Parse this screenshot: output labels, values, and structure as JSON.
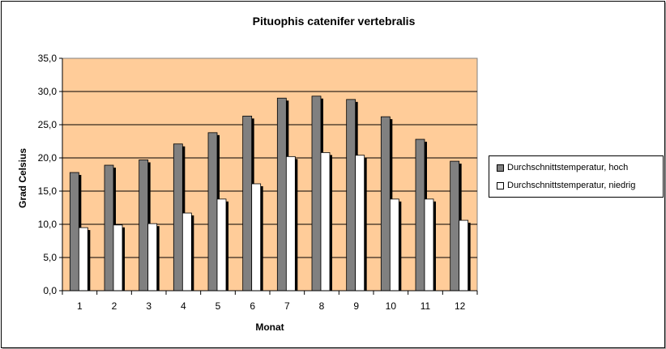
{
  "chart_data": {
    "type": "bar",
    "title": "Pituophis catenifer vertebralis",
    "xlabel": "Monat",
    "ylabel": "Grad Celsius",
    "categories": [
      "1",
      "2",
      "3",
      "4",
      "5",
      "6",
      "7",
      "8",
      "9",
      "10",
      "11",
      "12"
    ],
    "series": [
      {
        "name": "Durchschnittstemperatur, hoch",
        "color": "#808080",
        "values": [
          17.8,
          18.9,
          19.7,
          22.1,
          23.8,
          26.3,
          29.0,
          29.3,
          28.8,
          26.2,
          22.8,
          19.5
        ]
      },
      {
        "name": "Durchschnittstemperatur, niedrig",
        "color": "#ffffff",
        "values": [
          9.5,
          9.9,
          10.1,
          11.7,
          13.8,
          16.1,
          20.2,
          20.8,
          20.4,
          13.8,
          13.8,
          10.6
        ]
      }
    ],
    "ylim": [
      0,
      35
    ],
    "yticks": [
      "0,0",
      "5,0",
      "10,0",
      "15,0",
      "20,0",
      "25,0",
      "30,0",
      "35,0"
    ],
    "plot_background": "#ffcc99",
    "grid": true,
    "legend_position": "right"
  }
}
